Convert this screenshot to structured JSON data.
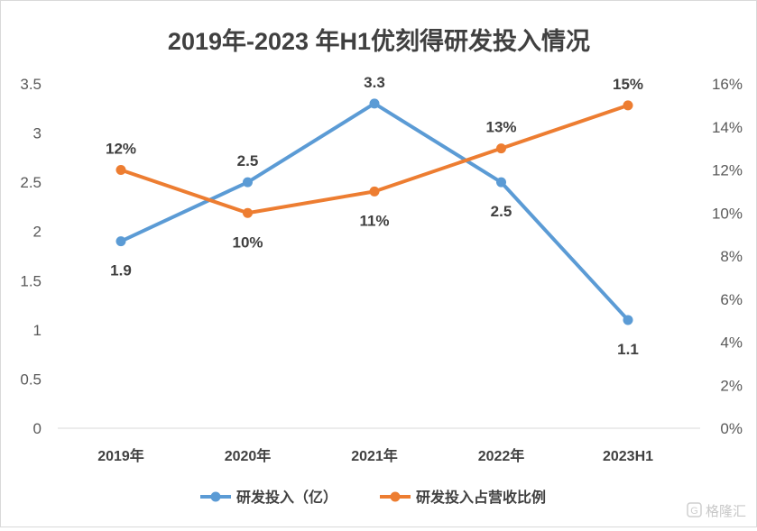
{
  "chart_data": {
    "type": "line",
    "title": "2019年-2023 年H1优刻得研发投入情况",
    "categories": [
      "2019年",
      "2020年",
      "2021年",
      "2022年",
      "2023H1"
    ],
    "y_left": {
      "ylim": [
        0,
        3.5
      ],
      "ticks": [
        "0",
        "0.5",
        "1",
        "1.5",
        "2",
        "2.5",
        "3",
        "3.5"
      ]
    },
    "y_right": {
      "ylim": [
        0,
        16
      ],
      "ticks": [
        "0%",
        "2%",
        "4%",
        "6%",
        "8%",
        "10%",
        "12%",
        "14%",
        "16%"
      ]
    },
    "series": [
      {
        "name": "研发投入（亿）",
        "axis": "left",
        "color": "#5b9bd5",
        "values": [
          1.9,
          2.5,
          3.3,
          2.5,
          1.1
        ],
        "labels": [
          "1.9",
          "2.5",
          "3.3",
          "2.5",
          "1.1"
        ]
      },
      {
        "name": "研发投入占营收比例",
        "axis": "right",
        "color": "#ed7d31",
        "values": [
          12,
          10,
          11,
          13,
          15
        ],
        "labels": [
          "12%",
          "10%",
          "11%",
          "13%",
          "15%"
        ]
      }
    ],
    "grid": false,
    "legend": "bottom"
  },
  "watermark": {
    "text": "格隆汇"
  }
}
